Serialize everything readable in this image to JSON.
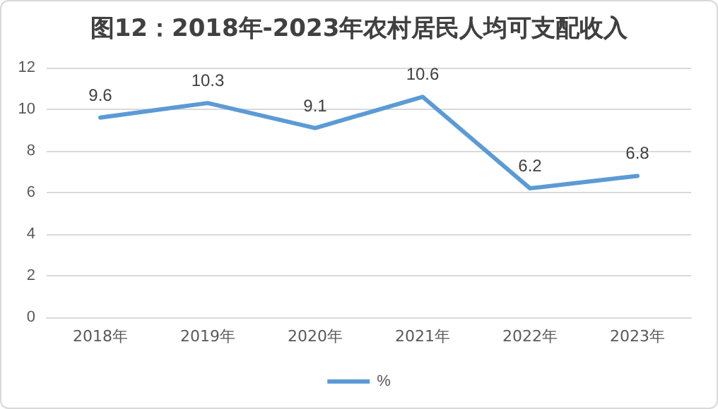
{
  "chart_data": {
    "type": "line",
    "title": "图12：2018年-2023年农村居民人均可支配收入",
    "categories": [
      "2018年",
      "2019年",
      "2020年",
      "2021年",
      "2022年",
      "2023年"
    ],
    "series": [
      {
        "name": "%",
        "color": "#5b9bd5",
        "values": [
          9.6,
          10.3,
          9.1,
          10.6,
          6.2,
          6.8
        ]
      }
    ],
    "ylim": [
      0,
      12
    ],
    "yticks": [
      0,
      2,
      4,
      6,
      8,
      10,
      12
    ],
    "grid": "y",
    "legend": "bottom",
    "data_labels": true,
    "marker": "none",
    "line_style": "solid"
  }
}
